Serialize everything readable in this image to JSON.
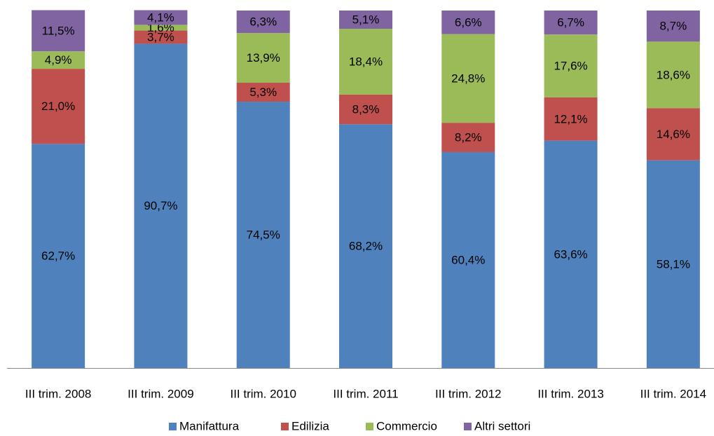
{
  "chart_data": {
    "type": "stacked_bar",
    "categories": [
      "III trim. 2008",
      "III trim. 2009",
      "III trim. 2010",
      "III trim. 2011",
      "III trim. 2012",
      "III trim. 2013",
      "III trim. 2014"
    ],
    "series": [
      {
        "name": "Manifattura",
        "color": "#4f81bd",
        "values": [
          62.7,
          90.7,
          74.5,
          68.2,
          60.4,
          63.6,
          58.1
        ],
        "value_labels": [
          "62,7%",
          "90,7%",
          "74,5%",
          "68,2%",
          "60,4%",
          "63,6%",
          "58,1%"
        ]
      },
      {
        "name": "Edilizia",
        "color": "#c0504d",
        "values": [
          21.0,
          3.7,
          5.3,
          8.3,
          8.2,
          12.1,
          14.6
        ],
        "value_labels": [
          "21,0%",
          "3,7%",
          "5,3%",
          "8,3%",
          "8,2%",
          "12,1%",
          "14,6%"
        ]
      },
      {
        "name": "Commercio",
        "color": "#9bbb59",
        "values": [
          4.9,
          1.6,
          13.9,
          18.4,
          24.8,
          17.6,
          18.6
        ],
        "value_labels": [
          "4,9%",
          "1,6%",
          "13,9%",
          "18,4%",
          "24,8%",
          "17,6%",
          "18,6%"
        ]
      },
      {
        "name": "Altri settori",
        "color": "#8064a2",
        "values": [
          11.5,
          4.1,
          6.3,
          5.1,
          6.6,
          6.7,
          8.7
        ],
        "value_labels": [
          "11,5%",
          "4,1%",
          "6,3%",
          "5,1%",
          "6,6%",
          "6,7%",
          "8,7%"
        ]
      }
    ],
    "ylim": [
      0,
      100
    ]
  }
}
